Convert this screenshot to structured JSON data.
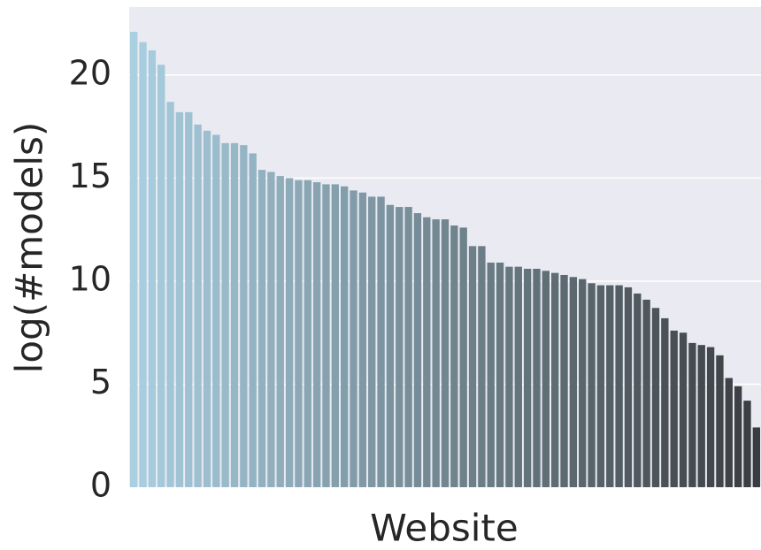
{
  "chart_data": {
    "type": "bar",
    "xlabel": "Website",
    "ylabel": "log(#models)",
    "categories": [
      null,
      null,
      null,
      null,
      null,
      null,
      null,
      null,
      null,
      null,
      null,
      null,
      null,
      null,
      null,
      null,
      null,
      null,
      null,
      null,
      null,
      null,
      null,
      null,
      null,
      null,
      null,
      null,
      null,
      null,
      null,
      null,
      null,
      null,
      null,
      null,
      null,
      null,
      null,
      null,
      null,
      null,
      null,
      null,
      null,
      null,
      null,
      null,
      null,
      null,
      null,
      null,
      null,
      null,
      null,
      null,
      null,
      null,
      null,
      null,
      null,
      null,
      null,
      null,
      null,
      null,
      null,
      null,
      null
    ],
    "values": [
      22.1,
      21.6,
      21.2,
      20.5,
      18.7,
      18.2,
      18.2,
      17.6,
      17.3,
      17.1,
      16.7,
      16.7,
      16.6,
      16.2,
      15.4,
      15.3,
      15.1,
      15.0,
      14.9,
      14.9,
      14.8,
      14.7,
      14.7,
      14.6,
      14.4,
      14.3,
      14.1,
      14.1,
      13.7,
      13.6,
      13.6,
      13.3,
      13.1,
      13.0,
      13.0,
      12.7,
      12.6,
      11.7,
      11.7,
      10.9,
      10.9,
      10.7,
      10.7,
      10.6,
      10.6,
      10.5,
      10.4,
      10.3,
      10.2,
      10.1,
      9.9,
      9.8,
      9.8,
      9.8,
      9.7,
      9.4,
      9.1,
      8.7,
      8.2,
      7.6,
      7.5,
      7.0,
      6.9,
      6.8,
      6.4,
      5.3,
      4.9,
      4.2,
      2.9
    ],
    "color_start": "#a9cfe1",
    "color_end": "#3a3d40",
    "ylim": [
      0,
      23.3
    ],
    "yticks": [
      0,
      5,
      10,
      15,
      20
    ],
    "grid": true
  }
}
